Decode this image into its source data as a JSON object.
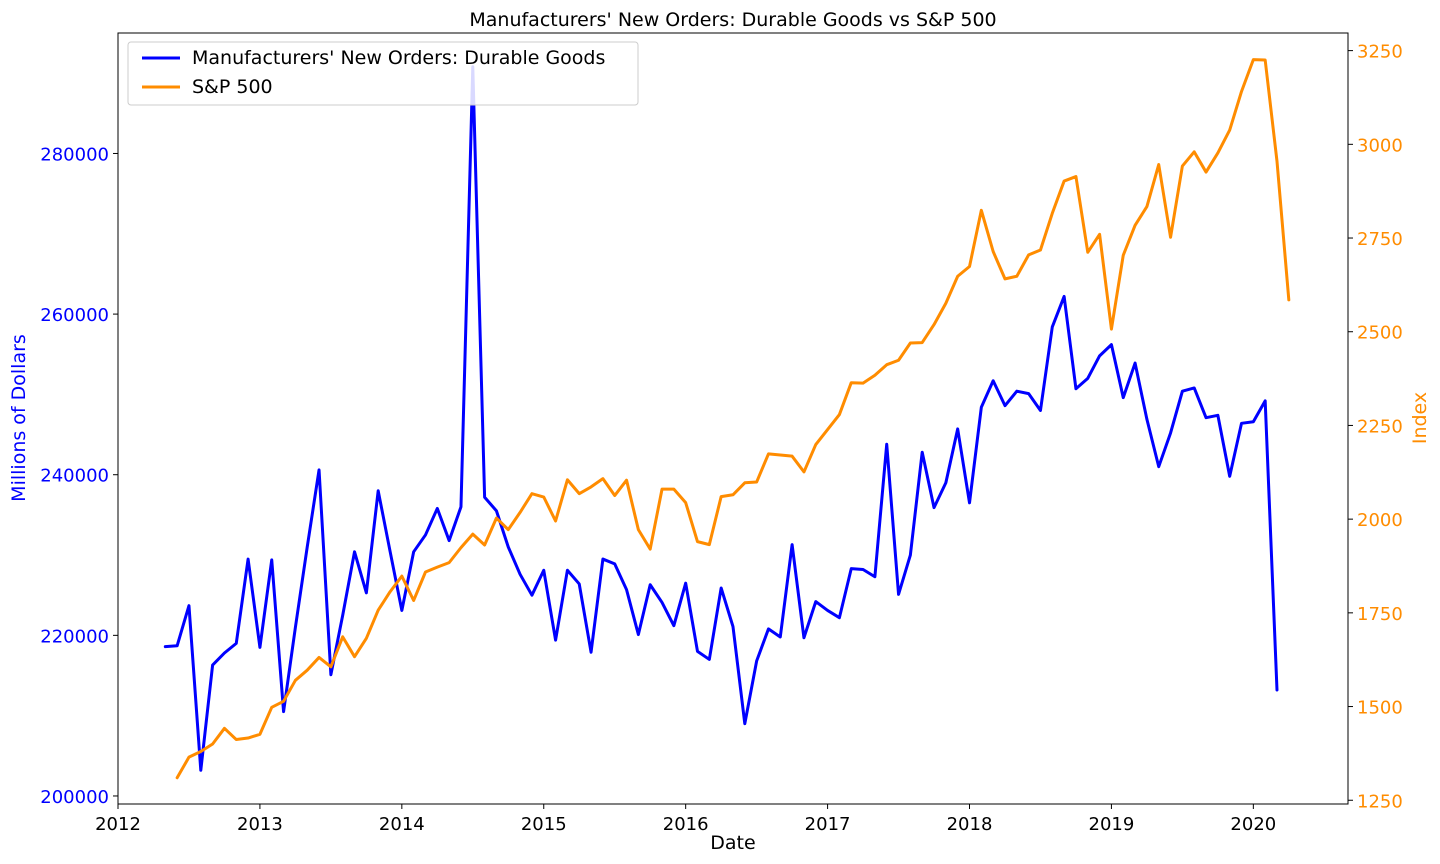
{
  "chart_data": {
    "type": "line",
    "title": "Manufacturers' New Orders: Durable Goods vs S&P 500",
    "xlabel": "Date",
    "ylabel_left": "Millions of Dollars",
    "ylabel_right": "Index",
    "xlim": [
      2012.0,
      2020.667
    ],
    "x_ticks": [
      "2012",
      "2013",
      "2014",
      "2015",
      "2016",
      "2017",
      "2018",
      "2019",
      "2020"
    ],
    "left_axis": {
      "ylim": [
        199000,
        295000
      ],
      "ticks": [
        "200000",
        "220000",
        "240000",
        "260000",
        "280000"
      ],
      "color": "#0000ff"
    },
    "right_axis": {
      "ylim": [
        1240,
        3297
      ],
      "ticks": [
        "1250",
        "1500",
        "1750",
        "2000",
        "2250",
        "2500",
        "2750",
        "3000",
        "3250"
      ],
      "color": "#ff8c00"
    },
    "legend": {
      "placement": "top-left",
      "entries": [
        "Manufacturers' New Orders: Durable Goods",
        "S&P 500"
      ]
    },
    "series": [
      {
        "name": "Manufacturers' New Orders: Durable Goods",
        "axis": "left",
        "color": "#0000ff",
        "start": "2012-05",
        "step": "month",
        "values": [
          218600,
          218700,
          223700,
          203200,
          216300,
          217800,
          219000,
          229500,
          218500,
          229400,
          210500,
          221000,
          231000,
          240600,
          215100,
          222500,
          230400,
          225300,
          238000,
          230500,
          223100,
          230400,
          232500,
          235800,
          231800,
          236000,
          290800,
          237200,
          235500,
          231000,
          227600,
          225000,
          228100,
          219400,
          228100,
          226400,
          217900,
          229500,
          228900,
          225700,
          220100,
          226300,
          224100,
          221200,
          226500,
          218000,
          217000,
          225900,
          221100,
          209000,
          216800,
          220800,
          219800,
          231300,
          219700,
          224200,
          223100,
          222200,
          228300,
          228200,
          227300,
          243800,
          225100,
          230000,
          242800,
          235900,
          239000,
          245700,
          236500,
          248400,
          251700,
          248600,
          250400,
          250100,
          248000,
          258400,
          262200,
          250700,
          252000,
          254800,
          256200,
          249600,
          253900,
          246900,
          241000,
          245200,
          250400,
          250800,
          247100,
          247400,
          239800,
          246400,
          246600,
          249200,
          213200
        ]
      },
      {
        "name": "S&P 500",
        "axis": "right",
        "color": "#ff8c00",
        "start": "2012-06",
        "step": "month",
        "values": [
          1310,
          1365,
          1380,
          1400,
          1442,
          1412,
          1416,
          1426,
          1498,
          1514,
          1570,
          1597,
          1631,
          1606,
          1686,
          1633,
          1682,
          1757,
          1806,
          1848,
          1783,
          1859,
          1872,
          1884,
          1924,
          1960,
          1931,
          2003,
          1972,
          2018,
          2068,
          2059,
          1995,
          2105,
          2068,
          2086,
          2108,
          2063,
          2104,
          1972,
          1920,
          2080,
          2080,
          2044,
          1940,
          1932,
          2060,
          2065,
          2097,
          2099,
          2174,
          2171,
          2168,
          2126,
          2199,
          2239,
          2279,
          2364,
          2363,
          2384,
          2412,
          2424,
          2470,
          2471,
          2519,
          2576,
          2648,
          2674,
          2824,
          2714,
          2641,
          2648,
          2705,
          2718,
          2816,
          2902,
          2914,
          2712,
          2760,
          2507,
          2704,
          2784,
          2834,
          2946,
          2752,
          2942,
          2980,
          2926,
          2977,
          3038,
          3141,
          3226,
          3225,
          2955,
          2585
        ]
      }
    ]
  }
}
